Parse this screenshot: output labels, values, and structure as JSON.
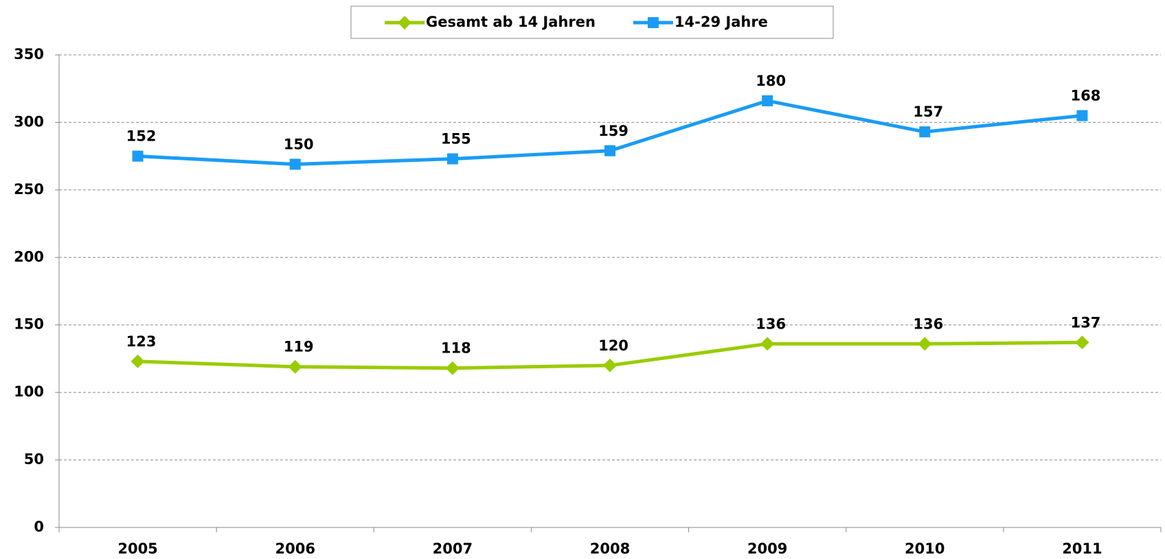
{
  "chart_data": {
    "type": "line",
    "stacked": true,
    "categories": [
      "2005",
      "2006",
      "2007",
      "2008",
      "2009",
      "2010",
      "2011"
    ],
    "series": [
      {
        "name": "Gesamt ab 14 Jahren",
        "color": "#99cc00",
        "marker": "diamond",
        "values": [
          123,
          119,
          118,
          120,
          136,
          136,
          137
        ]
      },
      {
        "name": "14-29 Jahre",
        "color": "#1a9cf4",
        "marker": "square",
        "values": [
          152,
          150,
          155,
          159,
          180,
          157,
          168
        ]
      }
    ],
    "ylim": [
      0,
      350
    ],
    "yticks": [
      0,
      50,
      100,
      150,
      200,
      250,
      300,
      350
    ],
    "grid": true,
    "legend": "top"
  }
}
